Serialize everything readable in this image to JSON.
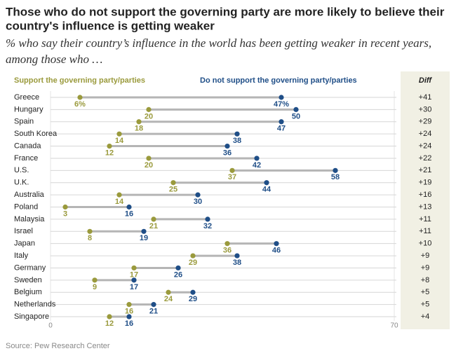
{
  "chart_data": {
    "type": "dot",
    "title": [
      "Those who do not support the governing party are more likely to believe their",
      "country's influence is getting weaker"
    ],
    "subtitle": [
      "% who say their country’s influence in the world has been getting weaker in recent years,",
      "among those who …"
    ],
    "categories": [
      "Greece",
      "Hungary",
      "Spain",
      "South Korea",
      "Canada",
      "France",
      "U.S.",
      "U.K.",
      "Australia",
      "Poland",
      "Malaysia",
      "Israel",
      "Japan",
      "Italy",
      "Germany",
      "Sweden",
      "Belgium",
      "Netherlands",
      "Singapore"
    ],
    "series": [
      {
        "name": "Support the governing party/parties",
        "color": "#9a9a3c",
        "values": [
          6,
          20,
          18,
          14,
          12,
          20,
          37,
          25,
          14,
          3,
          21,
          8,
          36,
          29,
          17,
          9,
          24,
          16,
          12
        ],
        "value_labels": [
          "6%",
          "20",
          "18",
          "14",
          "12",
          "20",
          "37",
          "25",
          "14",
          "3",
          "21",
          "8",
          "36",
          "29",
          "17",
          "9",
          "24",
          "16",
          "12"
        ]
      },
      {
        "name": "Do not support the governing party/parties",
        "color": "#1f4e87",
        "values": [
          47,
          50,
          47,
          38,
          36,
          42,
          58,
          44,
          30,
          16,
          32,
          19,
          46,
          38,
          26,
          17,
          29,
          21,
          16
        ],
        "value_labels": [
          "47%",
          "50",
          "47",
          "38",
          "36",
          "42",
          "58",
          "44",
          "30",
          "16",
          "32",
          "19",
          "46",
          "38",
          "26",
          "17",
          "29",
          "21",
          "16"
        ]
      }
    ],
    "diff_header": "Diff",
    "diff": [
      "+41",
      "+30",
      "+29",
      "+24",
      "+24",
      "+22",
      "+21",
      "+19",
      "+16",
      "+13",
      "+11",
      "+11",
      "+10",
      "+9",
      "+9",
      "+8",
      "+5",
      "+5",
      "+4"
    ],
    "xlim": [
      0,
      70
    ],
    "xticks": [
      0,
      70
    ],
    "source": "Source: Pew Research Center"
  }
}
